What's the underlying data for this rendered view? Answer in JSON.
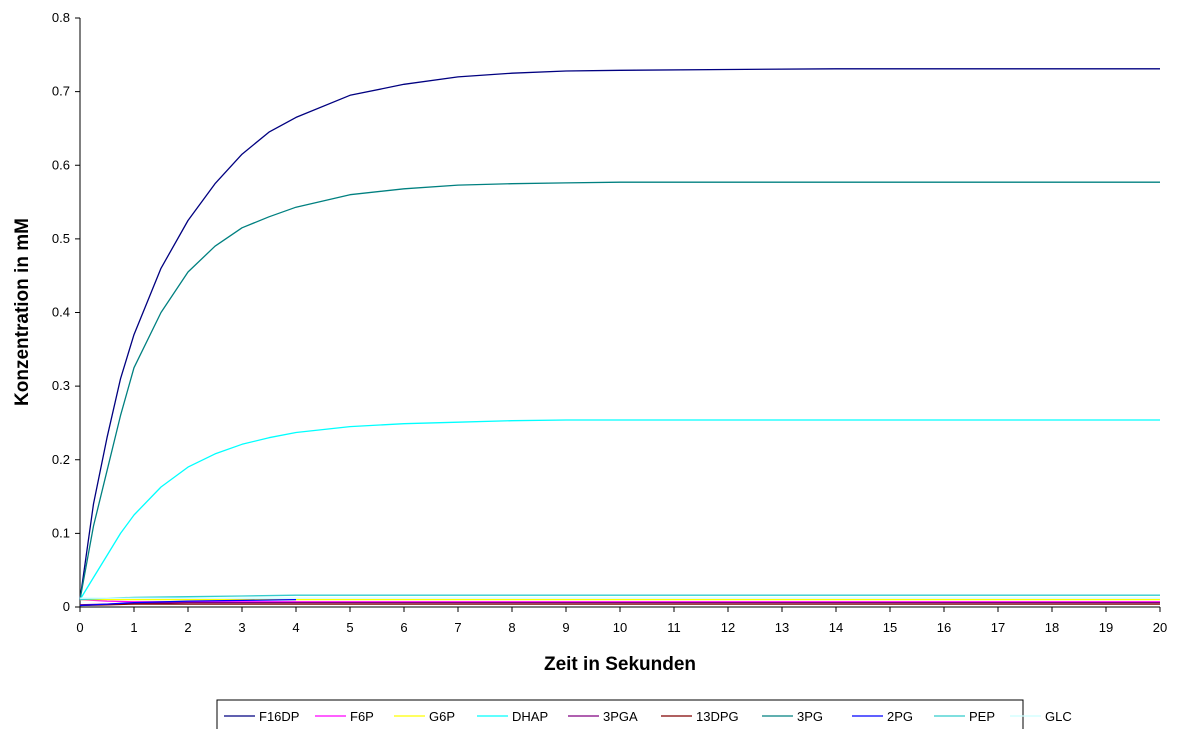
{
  "chart_data": {
    "type": "line",
    "title": "",
    "xlabel": "Zeit in Sekunden",
    "ylabel": "Konzentration in mM",
    "xlim": [
      0,
      20
    ],
    "ylim": [
      0,
      0.8
    ],
    "x_ticks": [
      "0",
      "1",
      "2",
      "3",
      "4",
      "5",
      "6",
      "7",
      "8",
      "9",
      "10",
      "11",
      "12",
      "13",
      "14",
      "15",
      "16",
      "17",
      "18",
      "19",
      "20"
    ],
    "y_ticks": [
      "0",
      "0.1",
      "0.2",
      "0.3",
      "0.4",
      "0.5",
      "0.6",
      "0.7",
      "0.8"
    ],
    "grid": false,
    "legend_position": "bottom",
    "series": [
      {
        "name": "F16DP",
        "color": "#000080",
        "x": [
          0,
          0.25,
          0.5,
          0.75,
          1,
          1.5,
          2,
          2.5,
          3,
          3.5,
          4,
          5,
          6,
          7,
          8,
          9,
          10,
          12,
          14,
          17,
          20
        ],
        "y": [
          0.01,
          0.14,
          0.23,
          0.31,
          0.37,
          0.46,
          0.525,
          0.575,
          0.615,
          0.645,
          0.665,
          0.695,
          0.71,
          0.72,
          0.725,
          0.728,
          0.729,
          0.73,
          0.731,
          0.731,
          0.731
        ]
      },
      {
        "name": "F6P",
        "color": "#FF00FF",
        "x": [
          0,
          0.5,
          1,
          2,
          3,
          5,
          10,
          20
        ],
        "y": [
          0.01,
          0.008,
          0.007,
          0.007,
          0.007,
          0.007,
          0.007,
          0.007
        ]
      },
      {
        "name": "G6P",
        "color": "#FFFF00",
        "x": [
          0,
          0.5,
          1,
          2,
          3,
          5,
          10,
          20
        ],
        "y": [
          0.01,
          0.01,
          0.01,
          0.01,
          0.01,
          0.01,
          0.01,
          0.01
        ]
      },
      {
        "name": "DHAP",
        "color": "#00FFFF",
        "x": [
          0,
          0.25,
          0.5,
          0.75,
          1,
          1.5,
          2,
          2.5,
          3,
          3.5,
          4,
          5,
          6,
          7,
          8,
          9,
          10,
          14,
          20
        ],
        "y": [
          0.01,
          0.04,
          0.07,
          0.1,
          0.125,
          0.163,
          0.19,
          0.208,
          0.221,
          0.23,
          0.237,
          0.245,
          0.249,
          0.251,
          0.253,
          0.254,
          0.254,
          0.254,
          0.254
        ]
      },
      {
        "name": "3PGA",
        "color": "#800080",
        "x": [
          0,
          0.5,
          1,
          2,
          3,
          4,
          5,
          10,
          20
        ],
        "y": [
          0.003,
          0.004,
          0.005,
          0.006,
          0.006,
          0.006,
          0.006,
          0.006,
          0.006
        ]
      },
      {
        "name": "13DPG",
        "color": "#800000",
        "x": [
          0,
          0.5,
          1,
          2,
          3,
          5,
          10,
          20
        ],
        "y": [
          0.002,
          0.003,
          0.004,
          0.004,
          0.004,
          0.004,
          0.004,
          0.004
        ]
      },
      {
        "name": "3PG",
        "color": "#008080",
        "x": [
          0,
          0.25,
          0.5,
          0.75,
          1,
          1.5,
          2,
          2.5,
          3,
          3.5,
          4,
          5,
          6,
          7,
          8,
          9,
          10,
          14,
          20
        ],
        "y": [
          0.01,
          0.11,
          0.185,
          0.26,
          0.325,
          0.4,
          0.455,
          0.49,
          0.515,
          0.53,
          0.543,
          0.56,
          0.568,
          0.573,
          0.575,
          0.576,
          0.577,
          0.577,
          0.577
        ]
      },
      {
        "name": "2PG",
        "color": "#0000FF",
        "x": [
          0,
          0.5,
          1,
          2,
          3,
          4
        ],
        "y": [
          0.002,
          0.004,
          0.006,
          0.008,
          0.009,
          0.01
        ]
      },
      {
        "name": "PEP",
        "color": "#33CCCC",
        "x": [
          0,
          0.5,
          1,
          2,
          3,
          4,
          5,
          10,
          20
        ],
        "y": [
          0.01,
          0.012,
          0.013,
          0.014,
          0.015,
          0.016,
          0.016,
          0.016,
          0.016
        ]
      },
      {
        "name": "GLC",
        "color": "#CCFFFF",
        "x": [
          0,
          0.5,
          1,
          2,
          3,
          5,
          10,
          20
        ],
        "y": [
          0.012,
          0.012,
          0.012,
          0.012,
          0.012,
          0.012,
          0.012,
          0.012
        ]
      }
    ]
  }
}
